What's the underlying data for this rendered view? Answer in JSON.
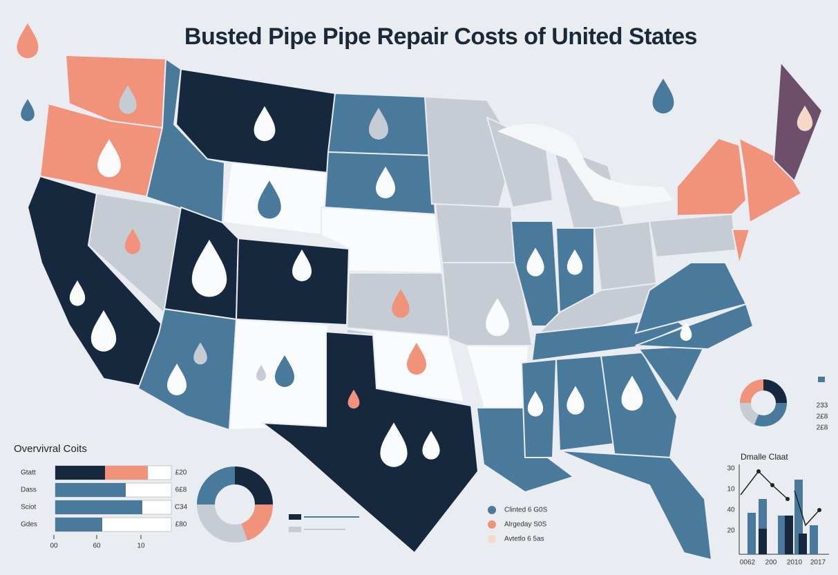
{
  "header": {
    "title": "Busted Pipe Pipe Repair Costs  of United States"
  },
  "overall_panel": {
    "title": "Overvivral Coits",
    "rows": [
      {
        "label": "Gtatt",
        "value_label": "£20"
      },
      {
        "label": "Dass",
        "value_label": "6£8"
      },
      {
        "label": "Sciot",
        "value_label": "C34"
      },
      {
        "label": "Gdes",
        "value_label": "£80"
      }
    ],
    "axis_labels": [
      "00",
      "60",
      "10"
    ]
  },
  "center_legend": [
    "Clinted 6 G0S",
    "Alrgeday S0S",
    "Avtetlo 6 5as"
  ],
  "donut_legend": [
    "233",
    "2£8",
    "2£8"
  ],
  "detail_chart": {
    "title": "Dmalle Claat",
    "y_labels": [
      "30",
      "10",
      "40",
      "20"
    ],
    "x_labels": [
      "0062",
      "200",
      "2010",
      "2017"
    ]
  }
}
